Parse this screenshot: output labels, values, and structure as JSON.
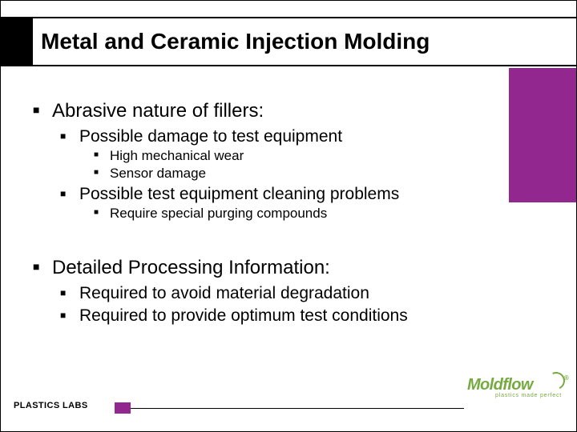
{
  "colors": {
    "accent_purple": "#92278f",
    "logo_green": "#75aa3f",
    "text": "#000000",
    "background": "#ffffff"
  },
  "title": "Metal and Ceramic Injection Molding",
  "bullets": {
    "b1": "Abrasive nature of fillers:",
    "b1_1": "Possible damage to test equipment",
    "b1_1_1": "High mechanical wear",
    "b1_1_2": "Sensor damage",
    "b1_2": "Possible test equipment cleaning problems",
    "b1_2_1": "Require special purging compounds",
    "b2": "Detailed Processing Information:",
    "b2_1": "Required to avoid material degradation",
    "b2_2": "Required to provide optimum test conditions"
  },
  "footer": {
    "label": "PLASTICS LABS",
    "logo_text": "Moldflow",
    "logo_tagline": "plastics made perfect",
    "logo_reg": "®"
  }
}
